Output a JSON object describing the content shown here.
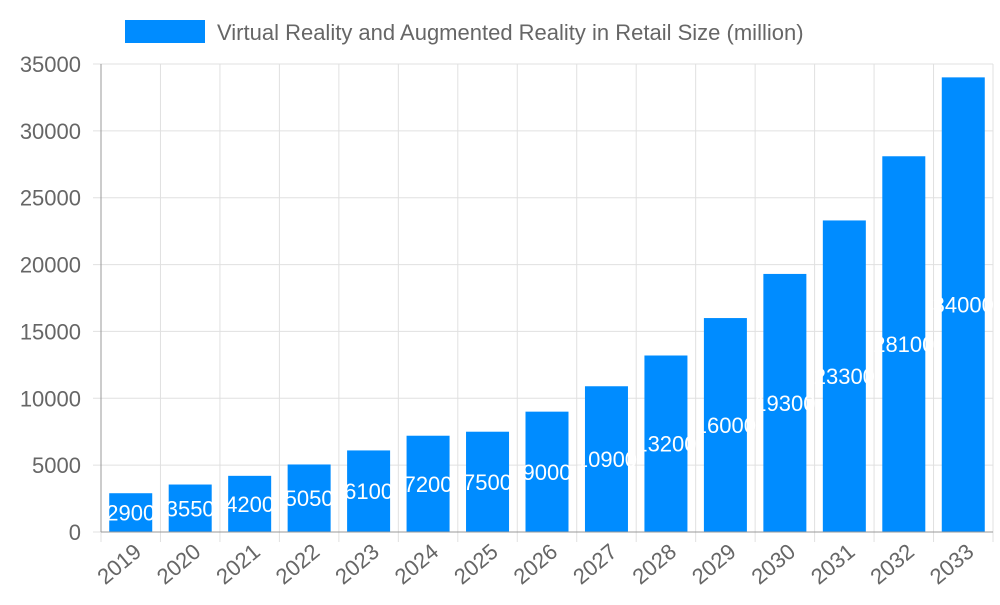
{
  "chart_data": {
    "type": "bar",
    "title": "",
    "legend": {
      "label": "Virtual Reality and Augmented Reality in Retail Size (million)",
      "placement": "top"
    },
    "categories": [
      "2019",
      "2020",
      "2021",
      "2022",
      "2023",
      "2024",
      "2025",
      "2026",
      "2027",
      "2028",
      "2029",
      "2030",
      "2031",
      "2032",
      "2033"
    ],
    "series": [
      {
        "name": "Virtual Reality and Augmented Reality in Retail Size (million)",
        "values": [
          2900,
          3550,
          4200,
          5050,
          6100,
          7200,
          7500,
          9000,
          10900,
          13200,
          16000,
          19300,
          23300,
          28100,
          34000
        ]
      }
    ],
    "ylim": [
      0,
      35000
    ],
    "yticks": [
      0,
      5000,
      10000,
      15000,
      20000,
      25000,
      30000,
      35000
    ],
    "grid": true,
    "data_labels": true,
    "colors": {
      "bar": "#008cff",
      "label": "#ffffff",
      "grid": "#e0e0e0",
      "axis_text": "#666666"
    }
  }
}
